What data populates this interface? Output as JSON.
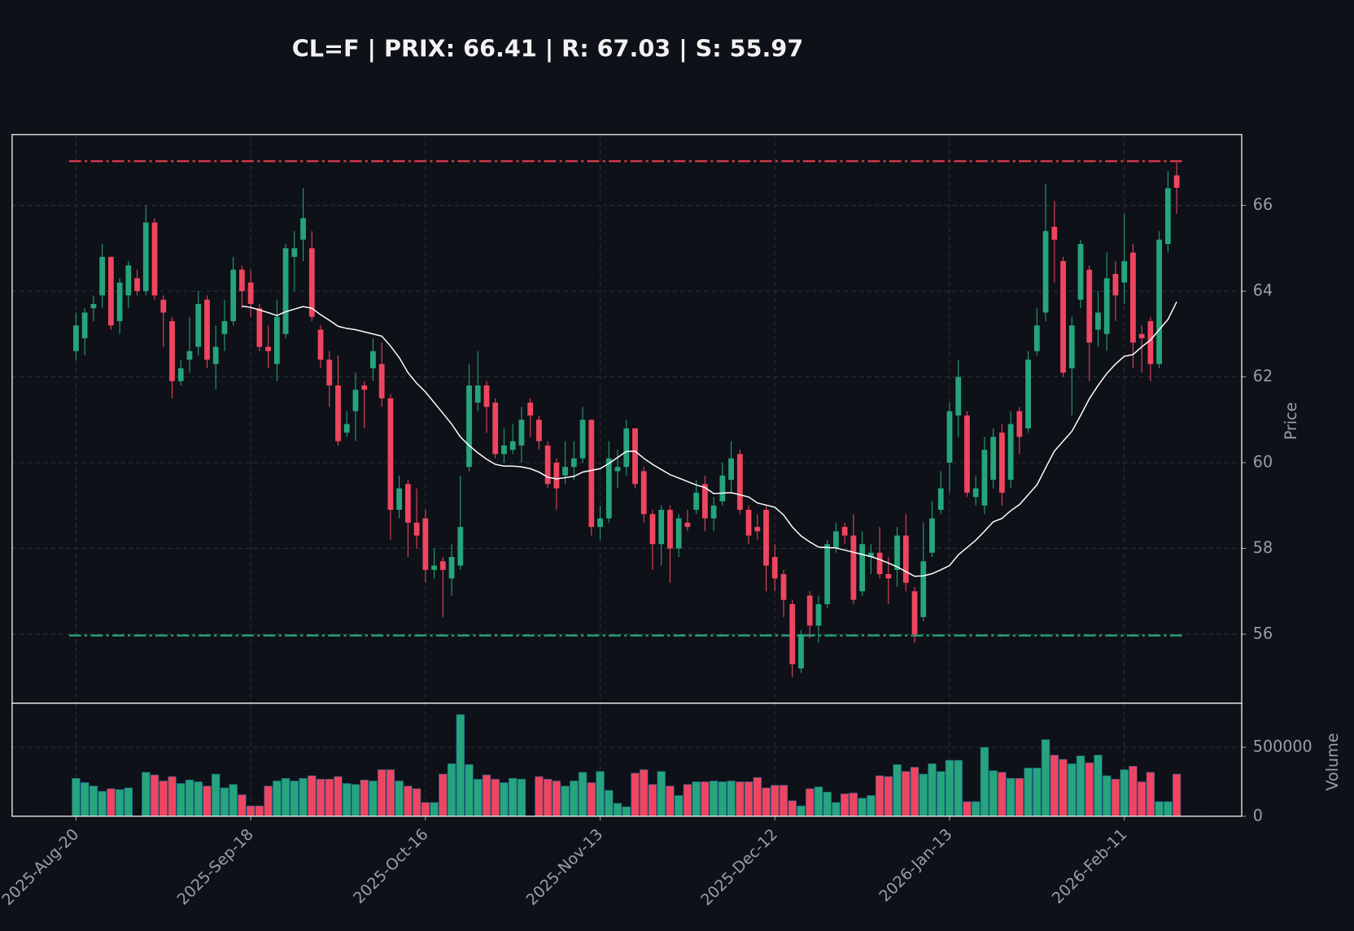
{
  "chart_data": [
    {
      "type": "candlestick",
      "title": "CL=F | PRIX: 66.41 | R: 67.03 | S: 55.97",
      "ylabel": "Price",
      "categories": [
        "2025-Aug-20",
        null,
        null,
        null,
        null,
        null,
        null,
        null,
        null,
        null,
        null,
        null,
        null,
        null,
        null,
        null,
        null,
        null,
        null,
        null,
        "2025-Sep-18",
        null,
        null,
        null,
        null,
        null,
        null,
        null,
        null,
        null,
        null,
        null,
        null,
        null,
        null,
        null,
        null,
        null,
        null,
        null,
        "2025-Oct-16",
        null,
        null,
        null,
        null,
        null,
        null,
        null,
        null,
        null,
        null,
        null,
        null,
        null,
        null,
        null,
        null,
        null,
        null,
        null,
        "2025-Nov-13",
        null,
        null,
        null,
        null,
        null,
        null,
        null,
        null,
        null,
        null,
        null,
        null,
        null,
        null,
        null,
        null,
        null,
        null,
        null,
        "2025-Dec-12",
        null,
        null,
        null,
        null,
        null,
        null,
        null,
        null,
        null,
        null,
        null,
        null,
        null,
        null,
        null,
        null,
        null,
        null,
        null,
        "2026-Jan-13",
        null,
        null,
        null,
        null,
        null,
        null,
        null,
        null,
        null,
        null,
        null,
        null,
        null,
        null,
        null,
        null,
        null,
        null,
        null,
        "2026-Feb-11",
        null,
        null,
        null,
        null,
        null,
        null
      ],
      "open": [
        62.6,
        62.9,
        63.6,
        63.9,
        64.8,
        63.3,
        63.9,
        64.3,
        64.0,
        65.6,
        63.8,
        63.3,
        61.9,
        62.4,
        62.7,
        63.8,
        62.3,
        63.0,
        63.3,
        64.5,
        64.2,
        63.6,
        62.7,
        62.3,
        63.0,
        64.8,
        65.2,
        65.0,
        63.1,
        62.4,
        61.8,
        60.7,
        61.2,
        61.8,
        62.2,
        62.3,
        61.5,
        58.9,
        59.5,
        58.6,
        58.7,
        57.5,
        57.7,
        57.3,
        57.6,
        59.9,
        61.4,
        61.8,
        61.4,
        60.2,
        60.3,
        60.4,
        61.4,
        61.0,
        60.4,
        60.0,
        59.7,
        59.9,
        60.1,
        61.0,
        58.5,
        58.7,
        59.8,
        59.9,
        60.8,
        59.8,
        58.8,
        58.1,
        58.9,
        58.0,
        58.6,
        58.9,
        59.5,
        58.7,
        59.1,
        59.6,
        60.2,
        58.9,
        58.5,
        58.9,
        57.8,
        57.4,
        56.7,
        55.2,
        56.9,
        56.2,
        56.7,
        58.0,
        58.5,
        58.3,
        57.0,
        57.8,
        57.9,
        57.4,
        57.5,
        58.3,
        57.0,
        56.4,
        57.9,
        58.9,
        60.0,
        61.1,
        61.1,
        59.2,
        59.0,
        59.6,
        60.7,
        59.6,
        61.2,
        60.8,
        62.6,
        63.5,
        65.5,
        64.7,
        62.2,
        63.8,
        64.5,
        63.1,
        63.0,
        64.4,
        64.2,
        64.9,
        63.0,
        63.3,
        62.3,
        65.1,
        66.7
      ],
      "high": [
        63.5,
        63.6,
        63.9,
        65.1,
        64.8,
        64.3,
        64.7,
        64.5,
        66.0,
        65.7,
        63.9,
        63.4,
        62.4,
        63.4,
        64.0,
        63.9,
        63.2,
        63.8,
        64.8,
        64.6,
        64.5,
        63.7,
        63.2,
        63.8,
        65.1,
        65.4,
        66.4,
        65.4,
        63.2,
        62.6,
        62.5,
        61.2,
        62.1,
        61.9,
        62.9,
        62.8,
        61.6,
        59.7,
        59.6,
        59.4,
        58.9,
        58.0,
        57.8,
        58.1,
        59.7,
        62.3,
        62.6,
        61.9,
        61.5,
        60.8,
        60.9,
        61.3,
        61.5,
        61.1,
        60.5,
        60.1,
        60.5,
        60.5,
        61.3,
        61.0,
        59.0,
        60.5,
        60.3,
        61.0,
        60.8,
        59.9,
        58.9,
        59.0,
        59.0,
        58.8,
        58.9,
        59.6,
        59.7,
        59.2,
        60.0,
        60.5,
        60.3,
        59.0,
        58.8,
        59.0,
        58.1,
        57.5,
        56.8,
        56.1,
        57.0,
        56.9,
        58.2,
        58.6,
        58.6,
        58.8,
        58.4,
        58.1,
        58.5,
        57.8,
        58.5,
        58.8,
        57.1,
        58.6,
        59.1,
        59.8,
        61.4,
        62.4,
        61.2,
        59.7,
        60.6,
        60.8,
        60.9,
        61.2,
        61.3,
        62.6,
        63.6,
        66.5,
        66.1,
        64.8,
        63.4,
        65.2,
        64.6,
        64.0,
        64.9,
        64.7,
        65.8,
        65.1,
        63.2,
        63.4,
        65.4,
        66.8,
        67.0
      ],
      "low": [
        62.4,
        62.5,
        63.3,
        63.6,
        63.1,
        63.0,
        63.6,
        63.9,
        63.9,
        63.8,
        62.7,
        61.5,
        61.8,
        62.1,
        62.5,
        62.2,
        61.7,
        62.6,
        63.2,
        63.6,
        63.4,
        62.6,
        62.2,
        61.9,
        62.9,
        64.0,
        64.7,
        63.3,
        62.2,
        61.3,
        60.4,
        60.6,
        60.5,
        60.8,
        61.9,
        61.3,
        58.2,
        58.7,
        57.8,
        58.0,
        57.2,
        57.3,
        56.4,
        56.9,
        57.5,
        59.8,
        61.2,
        60.7,
        60.1,
        60.0,
        60.2,
        60.0,
        60.6,
        60.3,
        59.4,
        58.9,
        59.5,
        59.6,
        60.0,
        58.3,
        58.2,
        58.6,
        59.4,
        59.7,
        59.4,
        58.6,
        57.5,
        57.6,
        57.2,
        57.8,
        58.4,
        58.8,
        58.4,
        58.4,
        59.0,
        59.3,
        58.8,
        58.1,
        58.2,
        57.0,
        57.0,
        56.4,
        55.0,
        55.1,
        55.9,
        55.8,
        56.6,
        57.9,
        58.1,
        56.7,
        56.9,
        57.4,
        57.3,
        56.7,
        57.1,
        57.0,
        55.8,
        56.3,
        57.8,
        58.8,
        59.3,
        60.6,
        59.2,
        59.0,
        58.8,
        59.4,
        59.0,
        59.4,
        60.2,
        60.7,
        62.5,
        63.3,
        64.2,
        62.0,
        61.1,
        63.6,
        61.9,
        62.7,
        62.6,
        63.3,
        63.7,
        62.2,
        62.1,
        61.9,
        62.2,
        64.9,
        65.8
      ],
      "close": [
        63.2,
        63.5,
        63.7,
        64.8,
        63.2,
        64.2,
        64.6,
        64.0,
        65.6,
        63.9,
        63.5,
        61.9,
        62.2,
        62.6,
        63.7,
        62.4,
        62.7,
        63.3,
        64.5,
        64.0,
        63.7,
        62.7,
        62.6,
        63.4,
        65.0,
        65.0,
        65.7,
        63.4,
        62.4,
        61.8,
        60.5,
        60.9,
        61.7,
        61.7,
        62.6,
        61.5,
        58.9,
        59.4,
        58.6,
        58.3,
        57.5,
        57.6,
        57.5,
        57.8,
        58.5,
        61.8,
        61.8,
        61.3,
        60.2,
        60.4,
        60.5,
        61.0,
        61.1,
        60.5,
        59.5,
        59.4,
        59.9,
        60.1,
        61.0,
        58.5,
        58.7,
        60.1,
        59.9,
        60.8,
        59.5,
        58.8,
        58.1,
        58.9,
        58.0,
        58.7,
        58.5,
        59.3,
        58.7,
        59.0,
        59.7,
        60.1,
        58.9,
        58.3,
        58.4,
        57.6,
        57.3,
        56.8,
        55.3,
        56.0,
        56.2,
        56.7,
        58.1,
        58.4,
        58.3,
        56.8,
        58.1,
        57.9,
        57.4,
        57.3,
        58.3,
        57.2,
        56.0,
        57.7,
        58.7,
        59.4,
        61.2,
        62.0,
        59.3,
        59.4,
        60.3,
        60.6,
        59.3,
        60.9,
        60.6,
        62.4,
        63.2,
        65.4,
        65.2,
        62.1,
        63.2,
        65.1,
        62.8,
        63.5,
        64.3,
        63.9,
        64.7,
        62.8,
        62.9,
        62.3,
        65.2,
        66.4,
        66.41
      ],
      "up_color": "#26a47c",
      "down_color": "#ef4560",
      "series": [
        {
          "color": "#ffffff",
          "values": [
            null,
            null,
            null,
            null,
            null,
            null,
            null,
            null,
            null,
            null,
            null,
            null,
            null,
            null,
            null,
            null,
            null,
            null,
            null,
            63.65,
            63.62,
            63.56,
            63.5,
            63.43,
            63.52,
            63.58,
            63.64,
            63.6,
            63.45,
            63.32,
            63.18,
            63.13,
            63.1,
            63.05,
            63.0,
            62.95,
            62.72,
            62.45,
            62.1,
            61.85,
            61.65,
            61.4,
            61.15,
            60.9,
            60.6,
            60.4,
            60.23,
            60.08,
            59.96,
            59.92,
            59.92,
            59.9,
            59.86,
            59.78,
            59.66,
            59.62,
            59.65,
            59.68,
            59.78,
            59.82,
            59.86,
            59.98,
            60.12,
            60.26,
            60.27,
            60.1,
            59.96,
            59.84,
            59.72,
            59.64,
            59.56,
            59.48,
            59.42,
            59.28,
            59.29,
            59.3,
            59.25,
            59.2,
            59.06,
            59.01,
            58.96,
            58.78,
            58.5,
            58.29,
            58.15,
            58.03,
            58.02,
            58.01,
            57.96,
            57.91,
            57.86,
            57.81,
            57.74,
            57.66,
            57.57,
            57.46,
            57.35,
            57.36,
            57.41,
            57.5,
            57.6,
            57.85,
            58.02,
            58.19,
            58.4,
            58.62,
            58.7,
            58.88,
            59.02,
            59.25,
            59.48,
            59.88,
            60.27,
            60.5,
            60.73,
            61.1,
            61.49,
            61.8,
            62.08,
            62.3,
            62.48,
            62.52,
            62.7,
            62.86,
            63.1,
            63.34,
            63.75
          ]
        }
      ],
      "resistance": 67.03,
      "resistance_color": "#e0394f",
      "support": 55.97,
      "support_color": "#26a47c",
      "ylim": [
        54.39,
        67.65
      ],
      "yticks": [
        56,
        58,
        60,
        62,
        64,
        66
      ],
      "grid": true
    },
    {
      "type": "bar",
      "ylabel": "Volume",
      "values": [
        275000,
        244000,
        219000,
        181000,
        200000,
        194000,
        206000,
        0,
        319000,
        300000,
        256000,
        288000,
        238000,
        263000,
        250000,
        219000,
        306000,
        206000,
        231000,
        156000,
        75000,
        75000,
        219000,
        256000,
        275000,
        256000,
        275000,
        294000,
        269000,
        269000,
        288000,
        238000,
        231000,
        263000,
        256000,
        338000,
        338000,
        256000,
        219000,
        200000,
        100000,
        100000,
        306000,
        381000,
        738000,
        375000,
        269000,
        300000,
        269000,
        244000,
        275000,
        269000,
        0,
        288000,
        269000,
        256000,
        219000,
        256000,
        319000,
        244000,
        325000,
        188000,
        94000,
        69000,
        313000,
        338000,
        231000,
        325000,
        219000,
        150000,
        231000,
        250000,
        250000,
        256000,
        250000,
        256000,
        250000,
        250000,
        281000,
        206000,
        225000,
        225000,
        113000,
        75000,
        200000,
        213000,
        175000,
        100000,
        163000,
        169000,
        131000,
        150000,
        294000,
        288000,
        375000,
        325000,
        356000,
        306000,
        381000,
        325000,
        406000,
        406000,
        106000,
        106000,
        500000,
        331000,
        319000,
        275000,
        275000,
        350000,
        350000,
        556000,
        444000,
        413000,
        381000,
        438000,
        388000,
        444000,
        294000,
        269000,
        338000,
        363000,
        250000,
        319000,
        106000,
        106000,
        306000
      ],
      "ylim": [
        0,
        820000
      ],
      "yticks": [
        0,
        500000
      ],
      "grid": true
    }
  ]
}
